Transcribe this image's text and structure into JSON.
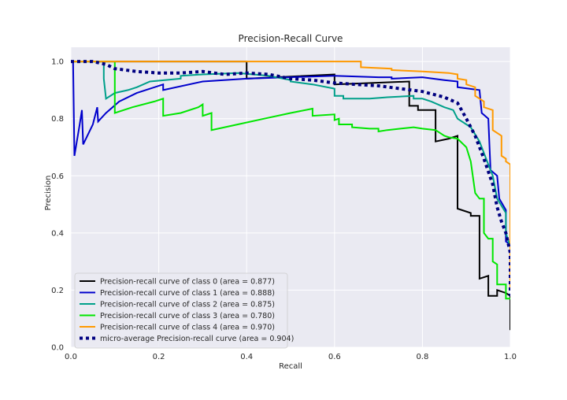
{
  "chart_data": {
    "type": "line",
    "title": "Precision-Recall Curve",
    "xlabel": "Recall",
    "ylabel": "Precision",
    "xlim": [
      0.0,
      1.0
    ],
    "ylim": [
      0.0,
      1.05
    ],
    "xticks": [
      "0.0",
      "0.2",
      "0.4",
      "0.6",
      "0.8",
      "1.0"
    ],
    "yticks": [
      "0.0",
      "0.2",
      "0.4",
      "0.6",
      "0.8",
      "1.0"
    ],
    "grid": true,
    "background": "#eaeaf2",
    "legend_position": "lower-left",
    "series": [
      {
        "name": "Precision-recall curve of class 0 (area = 0.877)",
        "color": "#000000",
        "style": "solid",
        "points": [
          [
            0.0,
            1.0
          ],
          [
            0.4,
            1.0
          ],
          [
            0.4,
            0.94
          ],
          [
            0.6,
            0.955
          ],
          [
            0.6,
            0.92
          ],
          [
            0.77,
            0.93
          ],
          [
            0.77,
            0.845
          ],
          [
            0.79,
            0.845
          ],
          [
            0.79,
            0.83
          ],
          [
            0.83,
            0.83
          ],
          [
            0.83,
            0.72
          ],
          [
            0.86,
            0.73
          ],
          [
            0.88,
            0.74
          ],
          [
            0.88,
            0.485
          ],
          [
            0.91,
            0.47
          ],
          [
            0.91,
            0.46
          ],
          [
            0.93,
            0.46
          ],
          [
            0.93,
            0.24
          ],
          [
            0.95,
            0.25
          ],
          [
            0.95,
            0.18
          ],
          [
            0.97,
            0.18
          ],
          [
            0.97,
            0.2
          ],
          [
            0.99,
            0.19
          ],
          [
            1.0,
            0.18
          ],
          [
            1.0,
            0.06
          ]
        ]
      },
      {
        "name": "Precision-recall curve of class 1 (area = 0.888)",
        "color": "#0000cc",
        "style": "solid",
        "points": [
          [
            0.0,
            1.0
          ],
          [
            0.005,
            1.0
          ],
          [
            0.008,
            0.67
          ],
          [
            0.02,
            0.78
          ],
          [
            0.025,
            0.83
          ],
          [
            0.028,
            0.71
          ],
          [
            0.05,
            0.78
          ],
          [
            0.06,
            0.84
          ],
          [
            0.062,
            0.79
          ],
          [
            0.08,
            0.82
          ],
          [
            0.11,
            0.86
          ],
          [
            0.15,
            0.89
          ],
          [
            0.21,
            0.92
          ],
          [
            0.21,
            0.9
          ],
          [
            0.3,
            0.93
          ],
          [
            0.4,
            0.94
          ],
          [
            0.6,
            0.95
          ],
          [
            0.7,
            0.945
          ],
          [
            0.73,
            0.945
          ],
          [
            0.73,
            0.94
          ],
          [
            0.8,
            0.945
          ],
          [
            0.85,
            0.935
          ],
          [
            0.88,
            0.93
          ],
          [
            0.88,
            0.91
          ],
          [
            0.93,
            0.9
          ],
          [
            0.935,
            0.82
          ],
          [
            0.95,
            0.8
          ],
          [
            0.955,
            0.62
          ],
          [
            0.97,
            0.6
          ],
          [
            0.975,
            0.52
          ],
          [
            0.99,
            0.48
          ],
          [
            0.99,
            0.37
          ],
          [
            1.0,
            0.36
          ],
          [
            1.0,
            0.27
          ]
        ]
      },
      {
        "name": "Precision-recall curve of class 2 (area = 0.875)",
        "color": "#00a08a",
        "style": "solid",
        "points": [
          [
            0.0,
            1.0
          ],
          [
            0.075,
            1.0
          ],
          [
            0.075,
            0.94
          ],
          [
            0.08,
            0.87
          ],
          [
            0.1,
            0.89
          ],
          [
            0.13,
            0.9
          ],
          [
            0.15,
            0.91
          ],
          [
            0.18,
            0.93
          ],
          [
            0.25,
            0.94
          ],
          [
            0.25,
            0.95
          ],
          [
            0.3,
            0.955
          ],
          [
            0.38,
            0.96
          ],
          [
            0.45,
            0.95
          ],
          [
            0.5,
            0.935
          ],
          [
            0.5,
            0.93
          ],
          [
            0.55,
            0.92
          ],
          [
            0.6,
            0.905
          ],
          [
            0.6,
            0.88
          ],
          [
            0.62,
            0.88
          ],
          [
            0.62,
            0.87
          ],
          [
            0.68,
            0.87
          ],
          [
            0.72,
            0.875
          ],
          [
            0.78,
            0.88
          ],
          [
            0.78,
            0.87
          ],
          [
            0.8,
            0.87
          ],
          [
            0.82,
            0.86
          ],
          [
            0.85,
            0.84
          ],
          [
            0.87,
            0.83
          ],
          [
            0.88,
            0.8
          ],
          [
            0.91,
            0.77
          ],
          [
            0.93,
            0.72
          ],
          [
            0.95,
            0.64
          ],
          [
            0.96,
            0.6
          ],
          [
            0.97,
            0.52
          ],
          [
            0.99,
            0.47
          ],
          [
            0.99,
            0.4
          ],
          [
            1.0,
            0.35
          ],
          [
            1.0,
            0.3
          ]
        ]
      },
      {
        "name": "Precision-recall curve of class 3 (area = 0.780)",
        "color": "#00e600",
        "style": "solid",
        "points": [
          [
            0.0,
            1.0
          ],
          [
            0.1,
            1.0
          ],
          [
            0.1,
            0.82
          ],
          [
            0.14,
            0.84
          ],
          [
            0.19,
            0.86
          ],
          [
            0.21,
            0.87
          ],
          [
            0.21,
            0.81
          ],
          [
            0.25,
            0.82
          ],
          [
            0.29,
            0.84
          ],
          [
            0.3,
            0.85
          ],
          [
            0.3,
            0.81
          ],
          [
            0.32,
            0.82
          ],
          [
            0.32,
            0.76
          ],
          [
            0.38,
            0.78
          ],
          [
            0.44,
            0.8
          ],
          [
            0.5,
            0.82
          ],
          [
            0.55,
            0.835
          ],
          [
            0.55,
            0.81
          ],
          [
            0.6,
            0.815
          ],
          [
            0.6,
            0.795
          ],
          [
            0.61,
            0.8
          ],
          [
            0.61,
            0.78
          ],
          [
            0.64,
            0.78
          ],
          [
            0.64,
            0.77
          ],
          [
            0.68,
            0.765
          ],
          [
            0.7,
            0.765
          ],
          [
            0.7,
            0.755
          ],
          [
            0.72,
            0.76
          ],
          [
            0.75,
            0.765
          ],
          [
            0.78,
            0.77
          ],
          [
            0.8,
            0.765
          ],
          [
            0.83,
            0.76
          ],
          [
            0.85,
            0.74
          ],
          [
            0.86,
            0.735
          ],
          [
            0.88,
            0.73
          ],
          [
            0.9,
            0.7
          ],
          [
            0.91,
            0.65
          ],
          [
            0.92,
            0.54
          ],
          [
            0.93,
            0.52
          ],
          [
            0.94,
            0.52
          ],
          [
            0.94,
            0.4
          ],
          [
            0.95,
            0.38
          ],
          [
            0.96,
            0.38
          ],
          [
            0.96,
            0.3
          ],
          [
            0.97,
            0.29
          ],
          [
            0.97,
            0.22
          ],
          [
            0.99,
            0.22
          ],
          [
            0.99,
            0.17
          ],
          [
            1.0,
            0.17
          ]
        ]
      },
      {
        "name": "Precision-recall curve of class 4 (area = 0.970)",
        "color": "#ff9900",
        "style": "solid",
        "points": [
          [
            0.0,
            1.0
          ],
          [
            0.66,
            1.0
          ],
          [
            0.66,
            0.98
          ],
          [
            0.73,
            0.975
          ],
          [
            0.73,
            0.97
          ],
          [
            0.8,
            0.965
          ],
          [
            0.86,
            0.96
          ],
          [
            0.88,
            0.955
          ],
          [
            0.88,
            0.94
          ],
          [
            0.9,
            0.935
          ],
          [
            0.9,
            0.92
          ],
          [
            0.92,
            0.91
          ],
          [
            0.92,
            0.88
          ],
          [
            0.94,
            0.86
          ],
          [
            0.94,
            0.84
          ],
          [
            0.96,
            0.83
          ],
          [
            0.96,
            0.76
          ],
          [
            0.98,
            0.74
          ],
          [
            0.98,
            0.67
          ],
          [
            0.99,
            0.66
          ],
          [
            0.99,
            0.65
          ],
          [
            1.0,
            0.64
          ],
          [
            1.0,
            0.2
          ]
        ]
      },
      {
        "name": "micro-average Precision-recall curve (area = 0.904)",
        "color": "#000080",
        "style": "dotted",
        "points": [
          [
            0.0,
            1.0
          ],
          [
            0.05,
            1.0
          ],
          [
            0.08,
            0.99
          ],
          [
            0.1,
            0.975
          ],
          [
            0.15,
            0.965
          ],
          [
            0.2,
            0.96
          ],
          [
            0.25,
            0.96
          ],
          [
            0.3,
            0.965
          ],
          [
            0.35,
            0.955
          ],
          [
            0.4,
            0.96
          ],
          [
            0.45,
            0.955
          ],
          [
            0.5,
            0.94
          ],
          [
            0.55,
            0.935
          ],
          [
            0.6,
            0.925
          ],
          [
            0.65,
            0.92
          ],
          [
            0.7,
            0.915
          ],
          [
            0.75,
            0.905
          ],
          [
            0.8,
            0.895
          ],
          [
            0.85,
            0.875
          ],
          [
            0.88,
            0.855
          ],
          [
            0.9,
            0.8
          ],
          [
            0.92,
            0.74
          ],
          [
            0.94,
            0.66
          ],
          [
            0.96,
            0.57
          ],
          [
            0.97,
            0.49
          ],
          [
            0.98,
            0.44
          ],
          [
            0.99,
            0.4
          ],
          [
            1.0,
            0.33
          ],
          [
            1.0,
            0.18
          ]
        ]
      }
    ]
  }
}
